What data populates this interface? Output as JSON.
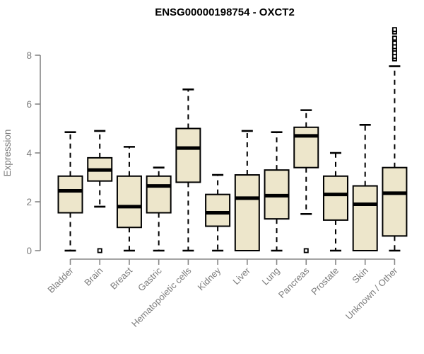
{
  "chart_data": {
    "type": "boxplot",
    "title": "ENSG00000198754 - OXCT2",
    "xlabel": "",
    "ylabel": "Expression",
    "ylim": [
      0,
      9.3
    ],
    "yticks": [
      0,
      2,
      4,
      6,
      8
    ],
    "grid": false,
    "legend": null,
    "categories": [
      "Bladder",
      "Brain",
      "Breast",
      "Gastric",
      "Hematopoietic cells",
      "Kidney",
      "Liver",
      "Lung",
      "Pancreas",
      "Prostate",
      "Skin",
      "Unknown / Other"
    ],
    "boxes": [
      {
        "category": "Bladder",
        "low": 0.0,
        "q1": 1.55,
        "median": 2.45,
        "q3": 3.05,
        "high": 4.85,
        "outliers": []
      },
      {
        "category": "Brain",
        "low": 1.8,
        "q1": 2.85,
        "median": 3.3,
        "q3": 3.8,
        "high": 4.9,
        "outliers": [
          0.0
        ]
      },
      {
        "category": "Breast",
        "low": 0.0,
        "q1": 0.95,
        "median": 1.8,
        "q3": 3.05,
        "high": 4.25,
        "outliers": []
      },
      {
        "category": "Gastric",
        "low": 0.0,
        "q1": 1.55,
        "median": 2.65,
        "q3": 3.05,
        "high": 3.4,
        "outliers": []
      },
      {
        "category": "Hematopoietic cells",
        "low": 0.0,
        "q1": 2.8,
        "median": 4.2,
        "q3": 5.0,
        "high": 6.6,
        "outliers": []
      },
      {
        "category": "Kidney",
        "low": 0.0,
        "q1": 1.0,
        "median": 1.55,
        "q3": 2.3,
        "high": 3.1,
        "outliers": []
      },
      {
        "category": "Liver",
        "low": 0.0,
        "q1": 0.0,
        "median": 2.15,
        "q3": 3.1,
        "high": 4.9,
        "outliers": []
      },
      {
        "category": "Lung",
        "low": 0.0,
        "q1": 1.3,
        "median": 2.25,
        "q3": 3.3,
        "high": 4.85,
        "outliers": []
      },
      {
        "category": "Pancreas",
        "low": 1.5,
        "q1": 3.4,
        "median": 4.7,
        "q3": 5.05,
        "high": 5.75,
        "outliers": [
          0.0
        ]
      },
      {
        "category": "Prostate",
        "low": 0.0,
        "q1": 1.25,
        "median": 2.3,
        "q3": 3.05,
        "high": 4.0,
        "outliers": []
      },
      {
        "category": "Skin",
        "low": 0.0,
        "q1": 0.0,
        "median": 1.9,
        "q3": 2.65,
        "high": 5.15,
        "outliers": []
      },
      {
        "category": "Unknown / Other",
        "low": 0.0,
        "q1": 0.6,
        "median": 2.35,
        "q3": 3.4,
        "high": 7.55,
        "outliers": [
          7.85,
          7.95,
          8.1,
          8.25,
          8.35,
          8.5,
          8.7,
          8.95,
          9.05
        ]
      }
    ],
    "colors": {
      "box_fill": "#ede6cb",
      "box_stroke": "#000000",
      "median": "#000000",
      "whisker": "#000000",
      "outlier_fill": "#ffffff",
      "axis": "#868686",
      "tick_label": "#7c7c7c",
      "title": "#000000"
    }
  }
}
